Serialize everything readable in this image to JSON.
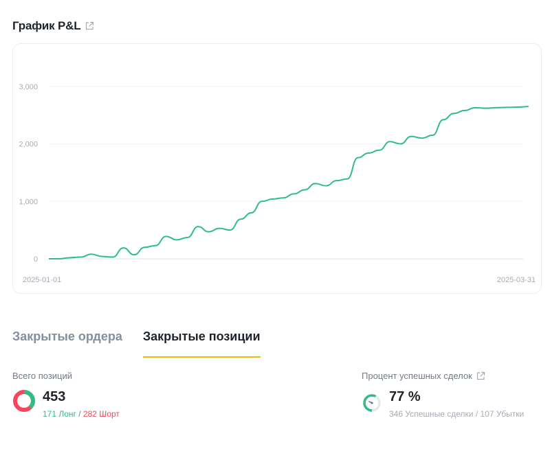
{
  "pnl": {
    "title": "График P&L",
    "link_icon": "external-link-icon"
  },
  "chart_data": {
    "type": "line",
    "x_start": "2025-01-01",
    "x_end": "2025-03-31",
    "x_tick_labels": [
      "2025-01-01",
      "2025-03-31"
    ],
    "y_tick_labels": [
      "0",
      "1,000",
      "2,000",
      "3,000"
    ],
    "y_ticks": [
      0,
      1000,
      2000,
      3000
    ],
    "ylim": [
      0,
      3500
    ],
    "grid": true,
    "color": "#2ebd85",
    "x": [
      1,
      3,
      5,
      7,
      9,
      11,
      13,
      15,
      17,
      19,
      21,
      23,
      25,
      27,
      29,
      31,
      33,
      35,
      37,
      39,
      41,
      43,
      45,
      47,
      49,
      51,
      53,
      55,
      57,
      59,
      61,
      63,
      65,
      67,
      69,
      71,
      73,
      75,
      77,
      79,
      81,
      83,
      85,
      87,
      89,
      91
    ],
    "values": [
      0,
      0,
      20,
      30,
      80,
      40,
      30,
      190,
      70,
      200,
      230,
      390,
      330,
      370,
      560,
      470,
      530,
      500,
      690,
      800,
      1000,
      1040,
      1060,
      1130,
      1200,
      1310,
      1270,
      1360,
      1390,
      1760,
      1840,
      1890,
      2040,
      2000,
      2130,
      2100,
      2150,
      2420,
      2530,
      2580,
      2630,
      2620,
      2630,
      2635,
      2640,
      2650
    ]
  },
  "tabs": [
    {
      "label": "Закрытые ордера",
      "active": false
    },
    {
      "label": "Закрытые позиции",
      "active": true
    }
  ],
  "positions": {
    "label": "Всего позиций",
    "total": "453",
    "long_text": "171 Лонг",
    "short_text": "282 Шорт",
    "long": 171,
    "short": 282
  },
  "win_rate": {
    "label": "Процент успешных сделок",
    "value": "77 %",
    "wins_text": "346 Успешные сделки",
    "losses_text": "107 Убытки",
    "rate": 0.77
  }
}
